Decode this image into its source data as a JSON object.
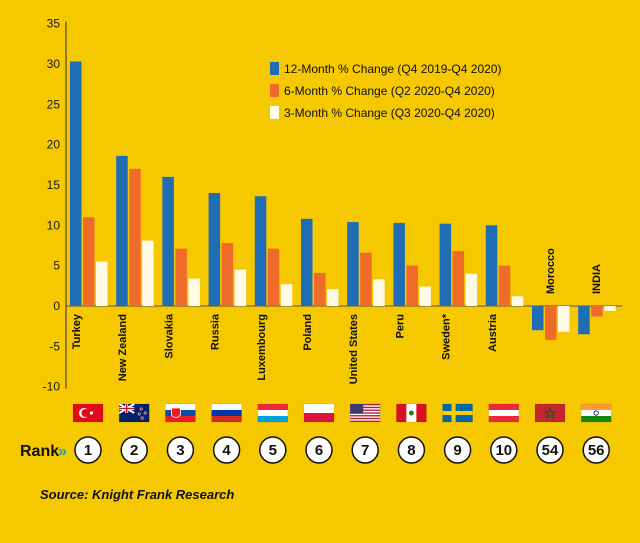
{
  "chart_data": {
    "type": "bar",
    "categories": [
      "Turkey",
      "New Zealand",
      "Slovakia",
      "Russia",
      "Luxembourg",
      "Poland",
      "United States",
      "Peru",
      "Sweden*",
      "Austria",
      "Morocco",
      "INDIA"
    ],
    "series": [
      {
        "name": "12-Month % Change (Q4 2019-Q4 2020)",
        "color": "#1f6db5",
        "values": [
          30.3,
          18.6,
          16.0,
          14.0,
          13.6,
          10.8,
          10.4,
          10.3,
          10.2,
          10.0,
          -3.0,
          -3.5
        ]
      },
      {
        "name": "6-Month % Change (Q2 2020-Q4 2020)",
        "color": "#ef6b2a",
        "values": [
          11.0,
          17.0,
          7.1,
          7.8,
          7.1,
          4.1,
          6.6,
          5.0,
          6.8,
          5.0,
          -4.2,
          -1.3
        ]
      },
      {
        "name": "3-Month % Change (Q3 2020-Q4 2020)",
        "color": "#fffbe6",
        "values": [
          5.5,
          8.1,
          3.4,
          4.5,
          2.7,
          2.1,
          3.3,
          2.4,
          4.0,
          1.2,
          -3.2,
          -0.6
        ]
      }
    ],
    "ylim": [
      -10,
      35
    ],
    "yticks": [
      35,
      30,
      25,
      20,
      15,
      10,
      5,
      0,
      -5,
      -10
    ],
    "grid": false,
    "legend_position": "top-right",
    "flags": [
      "turkey-flag",
      "new-zealand-flag",
      "slovakia-flag",
      "russia-flag",
      "luxembourg-flag",
      "poland-flag",
      "united-states-flag",
      "peru-flag",
      "sweden-flag",
      "austria-flag",
      "morocco-flag",
      "india-flag"
    ],
    "ranks": [
      "1",
      "2",
      "3",
      "4",
      "5",
      "6",
      "7",
      "8",
      "9",
      "10",
      "54",
      "56"
    ],
    "rank_label": "Rank",
    "rank_arrow": "»",
    "source": "Source: Knight Frank Research",
    "background": "#f5c800"
  }
}
